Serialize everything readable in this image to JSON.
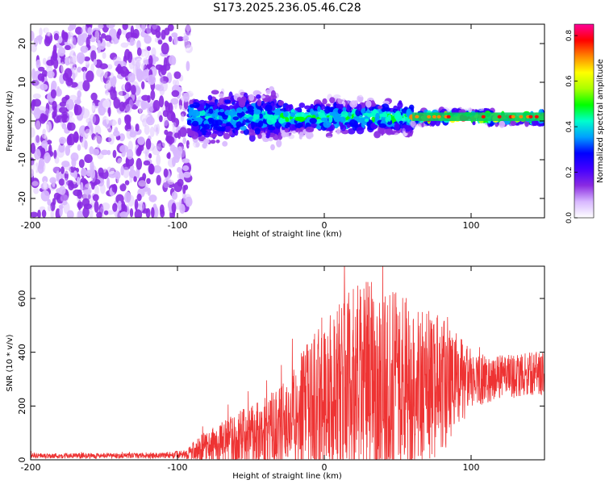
{
  "title": "S173.2025.236.05.46.C28",
  "chart_data": [
    {
      "type": "heatmap",
      "name": "spectrogram",
      "xlabel": "Height of straight line (km)",
      "ylabel": "Frequency (Hz)",
      "xlim": [
        -200,
        150
      ],
      "ylim": [
        -25,
        25
      ],
      "xticks": [
        -200,
        -100,
        0,
        100
      ],
      "yticks": [
        -20,
        -10,
        0,
        10,
        20
      ],
      "colorbar": {
        "label": "Normalized spectral amplitude",
        "range": [
          0.0,
          0.85
        ],
        "ticks": [
          "0.0",
          "0.2",
          "0.4",
          "0.6",
          "0.8"
        ],
        "colors": [
          "#ffffff",
          "#d8b8ff",
          "#8a2be2",
          "#4400ff",
          "#0000ff",
          "#00a0ff",
          "#00ffcc",
          "#00ff00",
          "#aaff00",
          "#ffff00",
          "#ff8800",
          "#ff0000",
          "#ff0099"
        ]
      },
      "regions": [
        {
          "x_from": -200,
          "x_to": -92,
          "description_level": 0.12,
          "spread_hz": 25
        },
        {
          "x_from": -92,
          "x_to": -30,
          "description_level": 0.3,
          "spread_hz": 6
        },
        {
          "x_from": -30,
          "x_to": 60,
          "description_level": 0.35,
          "spread_hz": 4
        },
        {
          "x_from": 60,
          "x_to": 150,
          "description_level": 0.6,
          "spread_hz": 1.5
        }
      ]
    },
    {
      "type": "line",
      "name": "snr",
      "xlabel": "Height of straight line (km)",
      "ylabel": "SNR (10 * v/v)",
      "xlim": [
        -200,
        150
      ],
      "ylim": [
        0,
        720
      ],
      "xticks": [
        -200,
        -100,
        0,
        100
      ],
      "yticks": [
        0,
        200,
        400,
        600
      ],
      "color": "#ee3333",
      "envelope": {
        "x": [
          -200,
          -120,
          -95,
          -85,
          -70,
          -50,
          -30,
          -20,
          -10,
          0,
          10,
          20,
          30,
          40,
          50,
          60,
          70,
          80,
          90,
          100,
          110,
          120,
          130,
          140,
          150
        ],
        "baseline": [
          15,
          15,
          20,
          40,
          60,
          90,
          120,
          160,
          200,
          230,
          260,
          280,
          290,
          280,
          290,
          280,
          270,
          270,
          280,
          300,
          300,
          310,
          310,
          320,
          320
        ],
        "amplitude": [
          10,
          10,
          15,
          50,
          80,
          120,
          150,
          200,
          250,
          300,
          330,
          360,
          380,
          360,
          340,
          320,
          300,
          260,
          200,
          110,
          90,
          80,
          80,
          80,
          80
        ]
      }
    }
  ]
}
